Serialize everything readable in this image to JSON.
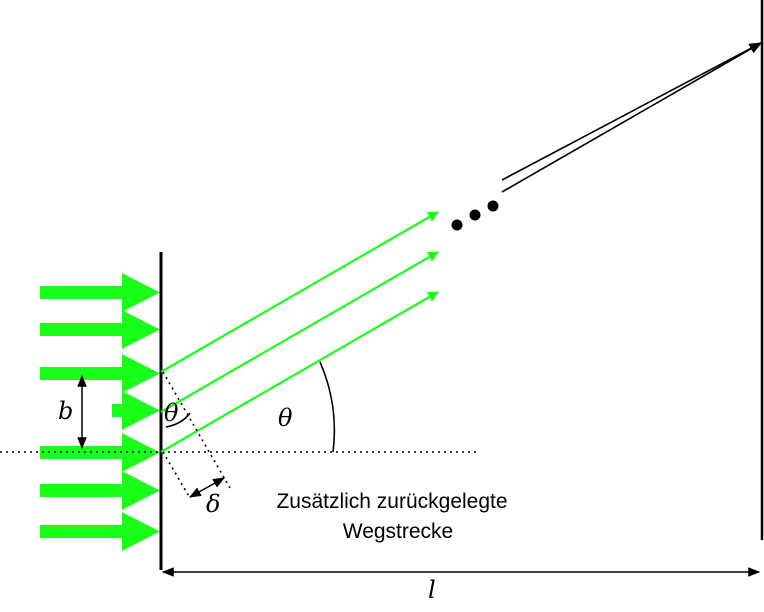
{
  "labels": {
    "b": "b",
    "theta_small": "θ",
    "theta_large": "θ",
    "delta": "δ",
    "l": "l",
    "path_difference_line1": "Zusätzlich zurückgelegte",
    "path_difference_line2": "Wegstrecke"
  },
  "colors": {
    "beam": "#19ff19",
    "line": "#000000",
    "background": "#ffffff"
  }
}
